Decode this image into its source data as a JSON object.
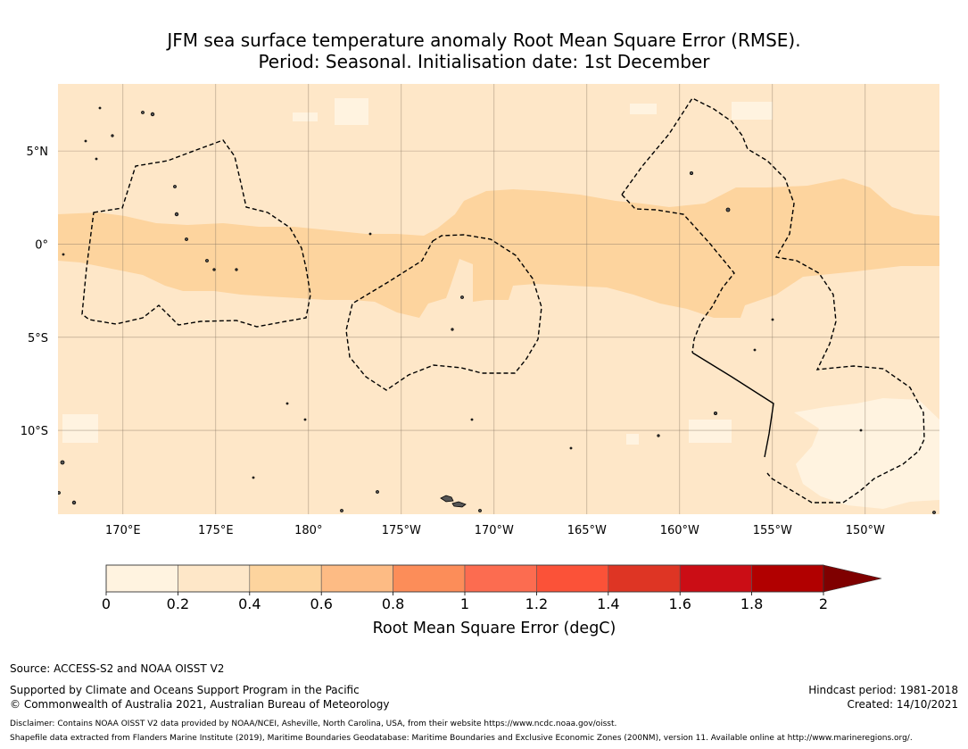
{
  "title": {
    "line1": "JFM sea surface temperature anomaly Root Mean Square Error (RMSE).",
    "line2": "Period: Seasonal. Initialisation date: 1st December"
  },
  "map": {
    "lon_range": [
      166.5,
      -146.0
    ],
    "lat_range": [
      -14.5,
      8.6
    ],
    "lat_ticks": [
      {
        "lat": 5,
        "label": "5°N"
      },
      {
        "lat": 0,
        "label": "0°"
      },
      {
        "lat": -5,
        "label": "5°S"
      },
      {
        "lat": -10,
        "label": "10°S"
      }
    ],
    "lon_ticks": [
      {
        "lon": 170,
        "label": "170°E"
      },
      {
        "lon": 175,
        "label": "175°E"
      },
      {
        "lon": 180,
        "label": "180°"
      },
      {
        "lon": -175,
        "label": "175°W"
      },
      {
        "lon": -170,
        "label": "170°W"
      },
      {
        "lon": -165,
        "label": "165°W"
      },
      {
        "lon": -160,
        "label": "160°W"
      },
      {
        "lon": -155,
        "label": "155°W"
      },
      {
        "lon": -150,
        "label": "150°W"
      }
    ],
    "colors": {
      "background": "#fee7c8",
      "band": "#fdd49e",
      "low": "#fff3e0",
      "grid": "#8a7a66",
      "boundary": "#000000"
    }
  },
  "colorbar": {
    "boundaries": [
      "0",
      "0.2",
      "0.4",
      "0.6",
      "0.8",
      "1",
      "1.2",
      "1.4",
      "1.6",
      "1.8",
      "2"
    ],
    "colors": [
      "#fff3e0",
      "#fee7c8",
      "#fdd49e",
      "#fdbb84",
      "#fc8d59",
      "#fc6c50",
      "#fb5238",
      "#de3524",
      "#cb0d15",
      "#b10000",
      "#7f0000"
    ],
    "label": "Root Mean Square Error (degC)"
  },
  "footer": {
    "source": "Source: ACCESS-S2 and NOAA OISST V2",
    "support": "Supported by Climate and Oceans Support Program in the Pacific",
    "copyright": "© Commonwealth of Australia 2021, Australian Bureau of Meteorology",
    "hindcast": "Hindcast period: 1981-2018",
    "created": "Created: 14/10/2021",
    "disclaimer": "Disclaimer: Contains NOAA OISST V2 data provided by NOAA/NCEI, Asheville, North Carolina, USA, from their website https://www.ncdc.noaa.gov/oisst.",
    "shapefile": "Shapefile data extracted from Flanders Marine Institute (2019), Maritime Boundaries Geodatabase: Maritime Boundaries and Exclusive Economic Zones (200NM), version 11. Available online at http://www.marineregions.org/."
  }
}
